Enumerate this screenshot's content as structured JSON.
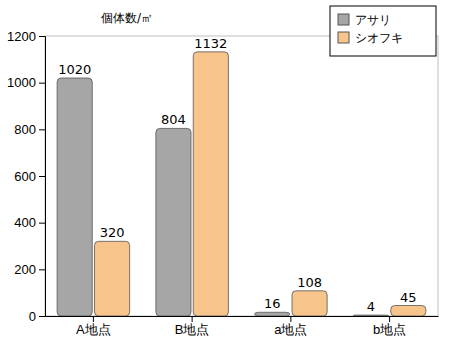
{
  "chart_data": {
    "type": "bar",
    "y_label": "個体数/㎡",
    "categories": [
      "A地点",
      "B地点",
      "a地点",
      "b地点"
    ],
    "series": [
      {
        "name": "アサリ",
        "color": "#a6a6a6",
        "values": [
          1020,
          804,
          16,
          4
        ]
      },
      {
        "name": "シオフキ",
        "color": "#f7c48c",
        "values": [
          320,
          1132,
          108,
          45
        ]
      }
    ],
    "ylim": [
      0,
      1200
    ],
    "yticks": [
      0,
      200,
      400,
      600,
      800,
      1000,
      1200
    ],
    "grid": false,
    "legend": "upper right",
    "data_labels": true
  }
}
